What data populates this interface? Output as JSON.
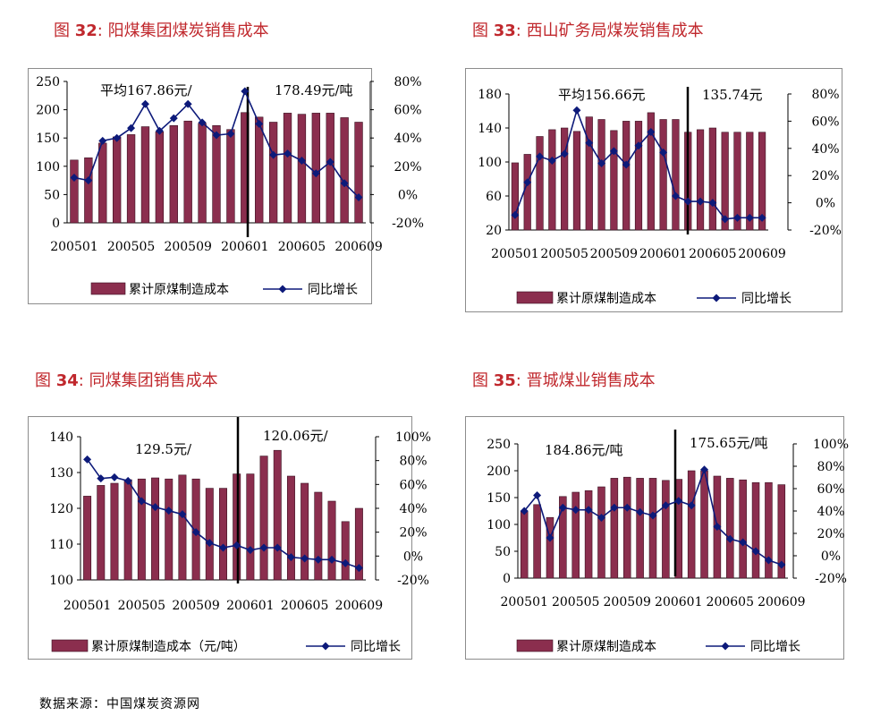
{
  "figures": [
    {
      "prefix": "图",
      "num": "32",
      "colon": ":",
      "name": "阳煤集团煤炭销售成本"
    },
    {
      "prefix": "图",
      "num": "33",
      "colon": ":",
      "name": "西山矿务局煤炭销售成本"
    },
    {
      "prefix": "图",
      "num": "34",
      "colon": ":",
      "name": "同煤集团销售成本"
    },
    {
      "prefix": "图",
      "num": "35",
      "colon": ":",
      "name": "晋城煤业销售成本"
    }
  ],
  "source": "数据来源：中国煤炭资源网",
  "colors": {
    "bar": "#8b2e4e",
    "line": "#0d1a7a",
    "title": "#c0282d"
  },
  "chart_data": [
    {
      "type": "bar",
      "categories": [
        "200501",
        "200502",
        "200503",
        "200504",
        "200505",
        "200506",
        "200507",
        "200508",
        "200509",
        "200510",
        "200511",
        "200512",
        "200601",
        "200602",
        "200603",
        "200604",
        "200605",
        "200606",
        "200607",
        "200608",
        "200609"
      ],
      "x_tick_labels": [
        "200501",
        "200505",
        "200509",
        "200601",
        "200605",
        "200609"
      ],
      "series": [
        {
          "name": "累计原煤制造成本",
          "type": "bar",
          "axis": "left",
          "values": [
            111,
            115,
            141,
            152,
            156,
            170,
            161,
            172,
            180,
            176,
            172,
            165,
            195,
            187,
            178,
            194,
            192,
            194,
            194,
            186,
            178
          ]
        },
        {
          "name": "同比增长",
          "type": "line",
          "axis": "right",
          "values": [
            12,
            10,
            38,
            40,
            47,
            64,
            45,
            54,
            64,
            51,
            42,
            43,
            73,
            50,
            28,
            29,
            24,
            15,
            23,
            8,
            -2
          ]
        }
      ],
      "ylim": [
        0,
        250
      ],
      "yticks": [
        0,
        50,
        100,
        150,
        200,
        250
      ],
      "y2lim": [
        -20,
        80
      ],
      "y2ticks": [
        "-20%",
        "0%",
        "20%",
        "40%",
        "60%",
        "80%"
      ],
      "annotations": [
        "平均167.86元/",
        "178.49元/吨"
      ],
      "legend": "bottom"
    },
    {
      "type": "bar",
      "categories": [
        "200501",
        "200502",
        "200503",
        "200504",
        "200505",
        "200506",
        "200507",
        "200508",
        "200509",
        "200510",
        "200511",
        "200512",
        "200601",
        "200602",
        "200603",
        "200604",
        "200605",
        "200606",
        "200607",
        "200608",
        "200609"
      ],
      "x_tick_labels": [
        "200501",
        "200505",
        "200509",
        "200601",
        "200605",
        "200609"
      ],
      "series": [
        {
          "name": "累计原煤制造成本",
          "type": "bar",
          "axis": "left",
          "values": [
            99,
            109,
            130,
            138,
            140,
            136,
            153,
            150,
            137,
            148,
            148,
            158,
            150,
            150,
            135,
            138,
            140,
            135,
            135,
            135,
            135
          ]
        },
        {
          "name": "同比增长",
          "type": "line",
          "axis": "right",
          "values": [
            -9,
            15,
            34,
            31,
            36,
            68,
            44,
            29,
            38,
            28,
            42,
            52,
            37,
            5,
            1,
            1,
            0,
            -12,
            -11,
            -11,
            -11
          ]
        }
      ],
      "ylim": [
        20,
        180
      ],
      "yticks": [
        20,
        60,
        100,
        140,
        180
      ],
      "y2lim": [
        -20,
        80
      ],
      "y2ticks": [
        "-20%",
        "0%",
        "20%",
        "40%",
        "60%",
        "80%"
      ],
      "annotations": [
        "平均156.66元",
        "135.74元"
      ],
      "legend": "bottom"
    },
    {
      "type": "bar",
      "categories": [
        "200501",
        "200502",
        "200503",
        "200504",
        "200505",
        "200506",
        "200507",
        "200508",
        "200509",
        "200510",
        "200511",
        "200512",
        "200601",
        "200602",
        "200603",
        "200604",
        "200605",
        "200606",
        "200607",
        "200608",
        "200609"
      ],
      "x_tick_labels": [
        "200501",
        "200505",
        "200509",
        "200601",
        "200605",
        "200609"
      ],
      "series": [
        {
          "name": "累计原煤制造成本（元/吨）",
          "type": "bar",
          "axis": "left",
          "values": [
            123.4,
            126.4,
            127,
            128,
            128.2,
            128.5,
            128.2,
            129.3,
            128.2,
            125.6,
            125.6,
            129.6,
            129.6,
            134.6,
            136.2,
            129,
            127,
            124.5,
            122,
            116.3,
            120
          ]
        },
        {
          "name": "同比增长",
          "type": "line",
          "axis": "right",
          "values": [
            81,
            65,
            66,
            63,
            46,
            41,
            38,
            35,
            20,
            11,
            7,
            9,
            5,
            7,
            7,
            -1,
            -2,
            -3,
            -3,
            -6,
            -10
          ]
        }
      ],
      "ylim": [
        100,
        140
      ],
      "yticks": [
        100,
        110,
        120,
        130,
        140
      ],
      "y2lim": [
        -20,
        100
      ],
      "y2ticks": [
        "-20%",
        "0%",
        "20%",
        "40%",
        "60%",
        "80%",
        "100%"
      ],
      "annotations": [
        "129.5元/",
        "120.06元/"
      ],
      "legend": "bottom"
    },
    {
      "type": "bar",
      "categories": [
        "200501",
        "200502",
        "200503",
        "200504",
        "200505",
        "200506",
        "200507",
        "200508",
        "200509",
        "200510",
        "200511",
        "200512",
        "200601",
        "200602",
        "200603",
        "200604",
        "200605",
        "200606",
        "200607",
        "200608",
        "200609"
      ],
      "x_tick_labels": [
        "200501",
        "200505",
        "200509",
        "200601",
        "200605",
        "200609"
      ],
      "series": [
        {
          "name": "累计原煤制造成本",
          "type": "bar",
          "axis": "left",
          "values": [
            125,
            137,
            113,
            152,
            160,
            163,
            170,
            186,
            188,
            186,
            186,
            182,
            184,
            200,
            200,
            190,
            186,
            183,
            178,
            178,
            174
          ]
        },
        {
          "name": "同比增长",
          "type": "line",
          "axis": "right",
          "values": [
            40,
            54,
            16,
            43,
            41,
            41,
            34,
            43,
            43,
            39,
            36,
            45,
            49,
            45,
            77,
            26,
            15,
            12,
            4,
            -4,
            -8
          ]
        }
      ],
      "ylim": [
        0,
        250
      ],
      "yticks": [
        0,
        50,
        100,
        150,
        200,
        250
      ],
      "y2lim": [
        -20,
        100
      ],
      "y2ticks": [
        "-20%",
        "0%",
        "20%",
        "40%",
        "60%",
        "80%",
        "100%"
      ],
      "annotations": [
        "184.86元/吨",
        "175.65元/吨"
      ],
      "legend": "bottom"
    }
  ]
}
